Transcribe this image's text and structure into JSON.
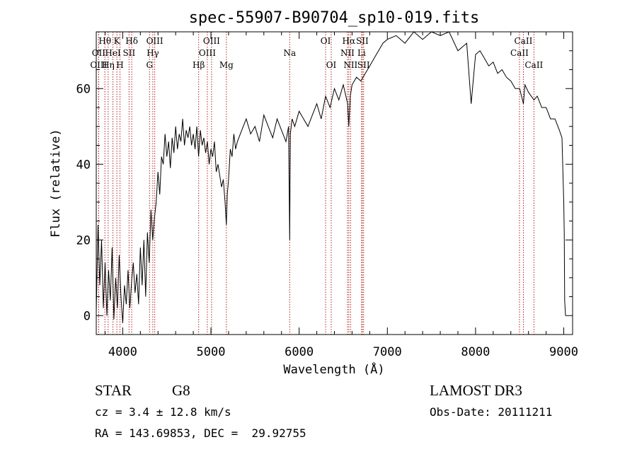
{
  "chart_data": {
    "type": "line",
    "title": "spec-55907-B90704_sp10-019.fits",
    "xlabel": "Wavelength (Å)",
    "ylabel": "Flux (relative)",
    "xlim": [
      3700,
      9100
    ],
    "ylim": [
      -5,
      75
    ],
    "xticks": [
      4000,
      5000,
      6000,
      7000,
      8000,
      9000
    ],
    "yticks": [
      0,
      20,
      40,
      60
    ],
    "grid": false,
    "series": [
      {
        "color": "#000000",
        "x": [
          3700,
          3720,
          3740,
          3760,
          3780,
          3800,
          3820,
          3840,
          3860,
          3880,
          3900,
          3920,
          3940,
          3960,
          3980,
          4000,
          4020,
          4040,
          4060,
          4080,
          4100,
          4120,
          4140,
          4160,
          4180,
          4200,
          4220,
          4240,
          4260,
          4280,
          4300,
          4320,
          4340,
          4360,
          4380,
          4400,
          4420,
          4440,
          4460,
          4480,
          4500,
          4520,
          4540,
          4560,
          4580,
          4600,
          4620,
          4640,
          4660,
          4680,
          4700,
          4720,
          4740,
          4760,
          4780,
          4800,
          4820,
          4840,
          4860,
          4880,
          4900,
          4920,
          4940,
          4960,
          4980,
          5000,
          5020,
          5040,
          5060,
          5080,
          5100,
          5120,
          5140,
          5160,
          5175,
          5185,
          5200,
          5220,
          5240,
          5260,
          5280,
          5300,
          5350,
          5400,
          5450,
          5500,
          5550,
          5600,
          5650,
          5700,
          5750,
          5800,
          5850,
          5880,
          5893,
          5900,
          5920,
          5950,
          6000,
          6050,
          6100,
          6150,
          6200,
          6250,
          6300,
          6350,
          6400,
          6450,
          6500,
          6550,
          6563,
          6580,
          6600,
          6650,
          6700,
          6750,
          6800,
          6850,
          6900,
          6950,
          7000,
          7100,
          7200,
          7300,
          7400,
          7500,
          7600,
          7700,
          7800,
          7900,
          7950,
          8000,
          8050,
          8100,
          8150,
          8200,
          8250,
          8300,
          8350,
          8400,
          8450,
          8500,
          8542,
          8560,
          8600,
          8662,
          8700,
          8750,
          8800,
          8850,
          8900,
          8950,
          8980,
          9000,
          9005,
          9010,
          9020
        ],
        "y": [
          1,
          24,
          8,
          20,
          2,
          14,
          0,
          12,
          4,
          18,
          -1,
          10,
          2,
          16,
          5,
          -2,
          8,
          3,
          12,
          2,
          9,
          14,
          6,
          11,
          3,
          18,
          8,
          20,
          5,
          22,
          14,
          28,
          20,
          26,
          30,
          38,
          32,
          42,
          40,
          48,
          42,
          46,
          39,
          47,
          43,
          50,
          44,
          48,
          46,
          52,
          45,
          49,
          47,
          50,
          45,
          48,
          44,
          50,
          42,
          49,
          45,
          47,
          43,
          46,
          40,
          44,
          42,
          46,
          38,
          40,
          37,
          34,
          36,
          30,
          24,
          32,
          36,
          44,
          42,
          48,
          44,
          46,
          49,
          52,
          48,
          50,
          46,
          53,
          50,
          47,
          52,
          49,
          46,
          50,
          20,
          48,
          52,
          50,
          54,
          52,
          50,
          53,
          56,
          52,
          58,
          55,
          60,
          57,
          61,
          56,
          50,
          58,
          61,
          63,
          62,
          64,
          66,
          68,
          70,
          72,
          73,
          74,
          72,
          75,
          73,
          76,
          74,
          75,
          70,
          72,
          56,
          69,
          70,
          68,
          66,
          67,
          64,
          65,
          63,
          62,
          60,
          60,
          56,
          61,
          59,
          57,
          58,
          55,
          55,
          52,
          52,
          49,
          47,
          30,
          22,
          4,
          0
        ]
      }
    ],
    "lines": [
      {
        "label": "Hθ",
        "x": 3798,
        "row": 1
      },
      {
        "label": "OII",
        "x": 3727,
        "row": 2
      },
      {
        "label": "OIII",
        "x": 3727,
        "row": 3
      },
      {
        "label": "K",
        "x": 3934,
        "row": 1
      },
      {
        "label": "HeI",
        "x": 3889,
        "row": 2
      },
      {
        "label": "Hη",
        "x": 3835,
        "row": 3
      },
      {
        "label": "Hδ",
        "x": 4102,
        "row": 1
      },
      {
        "label": "SII",
        "x": 4072,
        "row": 2
      },
      {
        "label": "H",
        "x": 3969,
        "row": 3
      },
      {
        "label": "OIII",
        "x": 4363,
        "row": 1
      },
      {
        "label": "Hγ",
        "x": 4341,
        "row": 2
      },
      {
        "label": "G",
        "x": 4304,
        "row": 3
      },
      {
        "label": "Hβ",
        "x": 4861,
        "row": 3
      },
      {
        "label": "OIII",
        "x": 5007,
        "row": 1
      },
      {
        "label": "OIII",
        "x": 4959,
        "row": 2
      },
      {
        "label": "Mg",
        "x": 5175,
        "row": 3
      },
      {
        "label": "Na",
        "x": 5893,
        "row": 2
      },
      {
        "label": "OI",
        "x": 6300,
        "row": 1
      },
      {
        "label": "OI",
        "x": 6364,
        "row": 3
      },
      {
        "label": "Hα",
        "x": 6563,
        "row": 1
      },
      {
        "label": "NII",
        "x": 6548,
        "row": 2
      },
      {
        "label": "NII",
        "x": 6583,
        "row": 3
      },
      {
        "label": "SII",
        "x": 6716,
        "row": 1
      },
      {
        "label": "Li",
        "x": 6708,
        "row": 2
      },
      {
        "label": "SII",
        "x": 6731,
        "row": 3
      },
      {
        "label": "CaII",
        "x": 8542,
        "row": 1
      },
      {
        "label": "CaII",
        "x": 8498,
        "row": 2
      },
      {
        "label": "CaII",
        "x": 8662,
        "row": 3
      }
    ]
  },
  "info": {
    "class": "STAR",
    "subclass": "G8",
    "survey": "LAMOST DR3",
    "cz": "cz = 3.4 ± 12.8 km/s",
    "obsdate": "Obs-Date: 20111211",
    "radec": "RA = 143.69853, DEC =  29.92755"
  }
}
